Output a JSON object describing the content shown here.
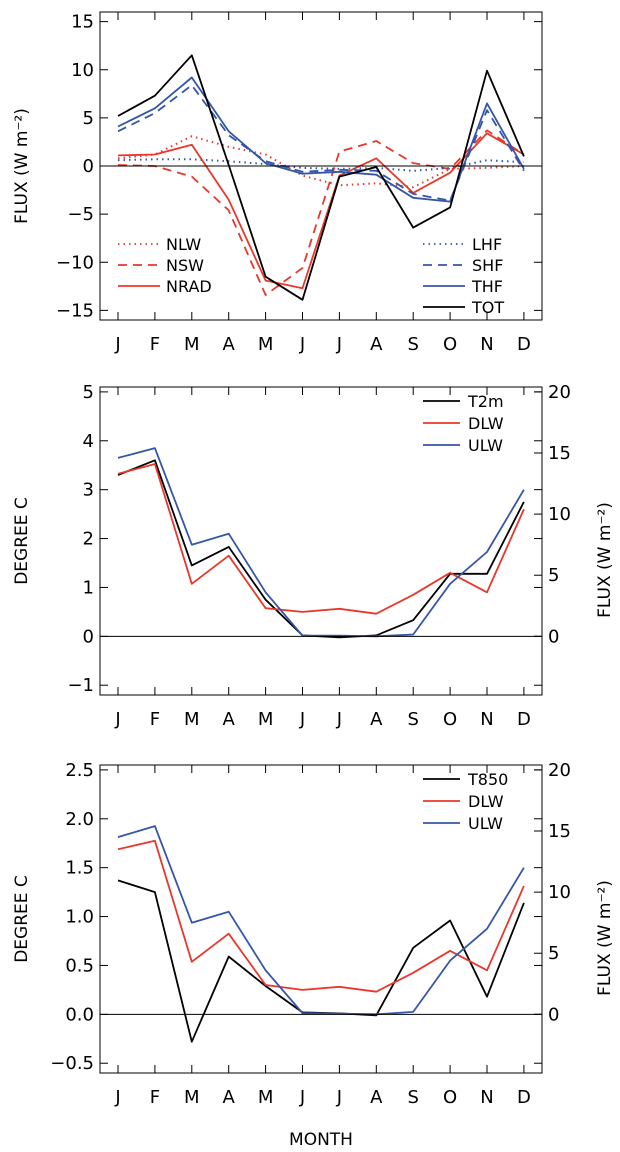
{
  "colors": {
    "black": "#000000",
    "red": "#e8382c",
    "blue": "#3556a8",
    "zero_line": "#000000"
  },
  "months": [
    "J",
    "F",
    "M",
    "A",
    "M",
    "J",
    "J",
    "A",
    "S",
    "O",
    "N",
    "D"
  ],
  "xlabel": "MONTH",
  "chart_data": [
    {
      "type": "line",
      "ylabel": "FLUX (W m⁻²)",
      "ylim": [
        -16,
        16
      ],
      "yticks": [
        -15,
        -10,
        -5,
        0,
        5,
        10,
        15
      ],
      "ytick_labels": [
        "−15",
        "−10",
        "−5",
        "0",
        "5",
        "10",
        "15"
      ],
      "zero_line": true,
      "series": [
        {
          "name": "NLW",
          "color": "red",
          "dash": "dotted",
          "values": [
            0.8,
            1.2,
            3.1,
            2.0,
            1.2,
            -1.0,
            -2.0,
            -1.8,
            -2.2,
            -0.3,
            -0.2,
            0.0
          ]
        },
        {
          "name": "NSW",
          "color": "red",
          "dash": "dashed",
          "values": [
            0.1,
            0.0,
            -1.1,
            -4.6,
            -13.4,
            -10.6,
            1.5,
            2.6,
            0.3,
            -0.3,
            3.7,
            1.2
          ]
        },
        {
          "name": "NRAD",
          "color": "red",
          "dash": "solid",
          "values": [
            1.1,
            1.2,
            2.2,
            -3.5,
            -11.9,
            -12.7,
            -1.0,
            0.8,
            -2.8,
            -0.7,
            3.4,
            1.2
          ]
        },
        {
          "name": "LHF",
          "color": "blue",
          "dash": "dotted",
          "values": [
            0.6,
            0.7,
            0.7,
            0.5,
            0.2,
            -0.2,
            -0.3,
            -0.2,
            -0.5,
            -0.2,
            0.6,
            0.4
          ]
        },
        {
          "name": "SHF",
          "color": "blue",
          "dash": "dashed",
          "values": [
            3.6,
            5.5,
            8.4,
            3.2,
            0.5,
            -0.6,
            -0.4,
            -0.5,
            -2.9,
            -3.6,
            5.8,
            -0.5
          ]
        },
        {
          "name": "THF",
          "color": "blue",
          "dash": "solid",
          "values": [
            4.1,
            6.0,
            9.2,
            3.6,
            0.3,
            -0.8,
            -0.6,
            -0.9,
            -3.3,
            -3.7,
            6.5,
            -0.3
          ]
        },
        {
          "name": "TOT",
          "color": "black",
          "dash": "solid",
          "values": [
            5.2,
            7.3,
            11.5,
            0.1,
            -11.5,
            -13.9,
            -1.1,
            -0.1,
            -6.4,
            -4.3,
            9.9,
            1.0
          ]
        }
      ],
      "legend_left": [
        "NLW",
        "NSW",
        "NRAD"
      ],
      "legend_right": [
        "LHF",
        "SHF",
        "THF",
        "TOT"
      ]
    },
    {
      "type": "line",
      "ylabel": "DEGREE C",
      "ylabel_right": "FLUX (W m⁻²)",
      "ylim": [
        -1.2,
        5.1
      ],
      "yticks": [
        -1,
        0,
        1,
        2,
        3,
        4,
        5
      ],
      "ytick_labels": [
        "−1",
        "0",
        "1",
        "2",
        "3",
        "4",
        "5"
      ],
      "yticks_right": [
        0,
        5,
        10,
        15,
        20
      ],
      "ytick_labels_right": [
        "0",
        "5",
        "10",
        "15",
        "20"
      ],
      "zero_line": true,
      "series": [
        {
          "name": "T2m",
          "color": "black",
          "axis": "left",
          "values": [
            3.3,
            3.6,
            1.45,
            1.83,
            0.75,
            0.02,
            -0.02,
            0.02,
            0.33,
            1.28,
            1.28,
            2.75
          ]
        },
        {
          "name": "DLW",
          "color": "red",
          "axis": "right",
          "values": [
            13.3,
            14.1,
            4.3,
            6.6,
            2.3,
            2.0,
            2.25,
            1.85,
            3.4,
            5.2,
            3.6,
            10.4
          ]
        },
        {
          "name": "ULW",
          "color": "blue",
          "axis": "right",
          "values": [
            14.6,
            15.4,
            7.5,
            8.4,
            3.6,
            0.05,
            0.05,
            0.0,
            0.15,
            4.3,
            6.9,
            12.0
          ]
        }
      ],
      "legend": [
        "T2m",
        "DLW",
        "ULW"
      ]
    },
    {
      "type": "line",
      "ylabel": "DEGREE C",
      "ylabel_right": "FLUX (W m⁻²)",
      "ylim": [
        -0.6,
        2.55
      ],
      "yticks": [
        -0.5,
        0.0,
        0.5,
        1.0,
        1.5,
        2.0,
        2.5
      ],
      "ytick_labels": [
        "−0.5",
        "0.0",
        "0.5",
        "1.0",
        "1.5",
        "2.0",
        "2.5"
      ],
      "yticks_right": [
        0,
        5,
        10,
        15,
        20
      ],
      "ytick_labels_right": [
        "0",
        "5",
        "10",
        "15",
        "20"
      ],
      "zero_line": true,
      "series": [
        {
          "name": "T850",
          "color": "black",
          "axis": "left",
          "values": [
            1.37,
            1.25,
            -0.28,
            0.59,
            0.29,
            0.02,
            0.01,
            -0.01,
            0.68,
            0.96,
            0.18,
            1.14
          ]
        },
        {
          "name": "DLW",
          "color": "red",
          "axis": "right",
          "values": [
            13.5,
            14.2,
            4.3,
            6.6,
            2.4,
            2.0,
            2.25,
            1.85,
            3.4,
            5.2,
            3.6,
            10.5
          ]
        },
        {
          "name": "ULW",
          "color": "blue",
          "axis": "right",
          "values": [
            14.5,
            15.4,
            7.5,
            8.4,
            3.6,
            0.1,
            0.05,
            0.0,
            0.2,
            4.4,
            7.0,
            12.0
          ]
        }
      ],
      "legend": [
        "T850",
        "DLW",
        "ULW"
      ]
    }
  ]
}
